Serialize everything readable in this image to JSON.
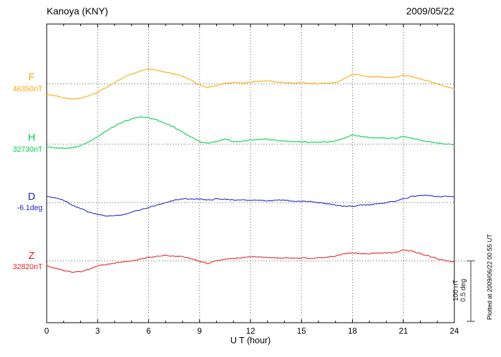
{
  "header": {
    "station": "Kanoya (KNY)",
    "date": "2009/05/22"
  },
  "chart_data": {
    "type": "line",
    "title": "Kanoya (KNY)",
    "subtitle": "2009/05/22",
    "xlabel": "U T (hour)",
    "x_range": [
      0,
      24
    ],
    "x_step": 0.5,
    "x_ticks": [
      0,
      3,
      6,
      9,
      12,
      15,
      18,
      21,
      24
    ],
    "grid_hours": [
      3,
      6,
      9,
      12,
      15,
      18,
      21
    ],
    "grid": "dotted-vertical-and-baselines",
    "scale_bar": {
      "nt_label": "100 nT",
      "deg_label": "0.5 deg",
      "nt_value": 100,
      "deg_value": 0.5
    },
    "plotted_at": "Plotted at 2009/06/22 00:55 UT",
    "series": [
      {
        "id": "F",
        "label": "F",
        "base_label": "46350nT",
        "unit": "nT",
        "color": "#ffa500",
        "offsets": [
          -18,
          -20,
          -23,
          -25,
          -24,
          -20,
          -14,
          -6,
          2,
          10,
          16,
          21,
          24,
          22,
          19,
          16,
          12,
          6,
          -2,
          -6,
          -3,
          1,
          2,
          1,
          3,
          4,
          5,
          3,
          2,
          1,
          2,
          1,
          0,
          1,
          2,
          8,
          16,
          14,
          11,
          12,
          10,
          11,
          14,
          12,
          8,
          4,
          0,
          -5,
          -8
        ]
      },
      {
        "id": "H",
        "label": "H",
        "base_label": "32730nT",
        "unit": "nT",
        "color": "#00cc44",
        "offsets": [
          -4,
          -6,
          -7,
          -6,
          -2,
          4,
          12,
          22,
          30,
          37,
          42,
          45,
          44,
          40,
          34,
          28,
          20,
          12,
          4,
          2,
          4,
          9,
          4,
          5,
          7,
          8,
          8,
          6,
          5,
          4,
          4,
          3,
          3,
          4,
          5,
          10,
          15,
          13,
          11,
          11,
          10,
          10,
          12,
          10,
          7,
          4,
          2,
          0,
          0
        ]
      },
      {
        "id": "D",
        "label": "D",
        "base_label": "-6.1deg",
        "unit": "deg",
        "color": "#2222cc",
        "offsets": [
          0.05,
          0.04,
          0.02,
          -0.02,
          -0.05,
          -0.08,
          -0.1,
          -0.11,
          -0.11,
          -0.1,
          -0.08,
          -0.06,
          -0.04,
          -0.02,
          0.0,
          0.02,
          0.03,
          0.03,
          0.03,
          0.02,
          0.03,
          0.03,
          0.02,
          0.02,
          0.02,
          0.02,
          0.01,
          0.02,
          0.02,
          0.01,
          0.01,
          0.01,
          0.0,
          -0.01,
          -0.02,
          -0.03,
          -0.03,
          -0.02,
          -0.02,
          -0.01,
          0.0,
          0.01,
          0.03,
          0.05,
          0.06,
          0.06,
          0.05,
          0.05,
          0.05
        ]
      },
      {
        "id": "Z",
        "label": "Z",
        "base_label": "32820nT",
        "unit": "nT",
        "color": "#dd2222",
        "offsets": [
          -8,
          -12,
          -16,
          -19,
          -18,
          -14,
          -8,
          -6,
          -4,
          -2,
          0,
          3,
          6,
          8,
          9,
          8,
          7,
          4,
          -1,
          -4,
          0,
          3,
          4,
          5,
          7,
          7,
          6,
          5,
          5,
          5,
          5,
          4,
          5,
          6,
          8,
          12,
          13,
          12,
          12,
          13,
          13,
          14,
          18,
          16,
          12,
          8,
          4,
          0,
          -2
        ]
      }
    ]
  }
}
